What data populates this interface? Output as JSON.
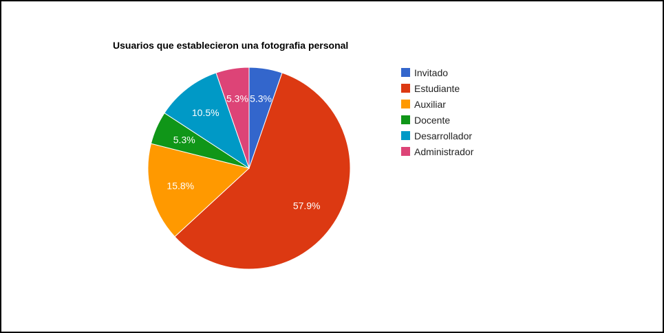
{
  "chart_data": {
    "type": "pie",
    "title": "Usuarios que establecieron una fotografia personal",
    "start_angle_deg": 0,
    "direction": "clockwise",
    "legend_position": "right",
    "slices": [
      {
        "label": "Invitado",
        "percent": 5.3,
        "display": "5.3%",
        "color": "#3366cc"
      },
      {
        "label": "Estudiante",
        "percent": 57.9,
        "display": "57.9%",
        "color": "#dc3912"
      },
      {
        "label": "Auxiliar",
        "percent": 15.8,
        "display": "15.8%",
        "color": "#ff9900"
      },
      {
        "label": "Docente",
        "percent": 5.3,
        "display": "5.3%",
        "color": "#109618"
      },
      {
        "label": "Desarrollador",
        "percent": 10.5,
        "display": "10.5%",
        "color": "#0099c6"
      },
      {
        "label": "Administrador",
        "percent": 5.3,
        "display": "5.3%",
        "color": "#dd4477"
      }
    ]
  }
}
